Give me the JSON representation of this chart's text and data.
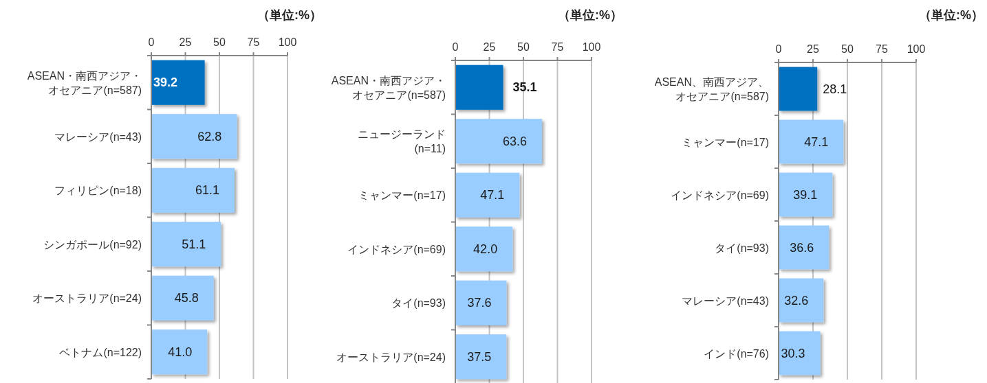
{
  "chart_data": [
    {
      "type": "bar",
      "orientation": "horizontal",
      "xlabel": "（単位:%）",
      "categories": [
        "ASEAN・南西アジア・オセアニア(n=587)",
        "マレーシア(n=43)",
        "フィリピン(n=18)",
        "シンガポール(n=92)",
        "オーストラリア(n=24)",
        "ベトナム(n=122)"
      ],
      "values": [
        39.2,
        62.8,
        61.1,
        51.1,
        45.8,
        41.0
      ],
      "value_labels": [
        "39.2",
        "62.8",
        "61.1",
        "51.1",
        "45.8",
        "41.0"
      ],
      "colors": [
        "#0070c0",
        "#99ccff",
        "#99ccff",
        "#99ccff",
        "#99ccff",
        "#99ccff"
      ],
      "xlim": [
        0,
        100
      ],
      "xticks": [
        0,
        25,
        50,
        75,
        100
      ],
      "grid": "x"
    },
    {
      "type": "bar",
      "orientation": "horizontal",
      "xlabel": "（単位:%）",
      "categories": [
        "ASEAN・南西アジア・オセアニア(n=587)",
        "ニュージーランド(n=11)",
        "ミャンマー(n=17)",
        "インドネシア(n=69)",
        "タイ(n=93)",
        "オーストラリア(n=24)"
      ],
      "values": [
        35.1,
        63.6,
        47.1,
        42.0,
        37.6,
        37.5
      ],
      "value_labels": [
        "35.1",
        "63.6",
        "47.1",
        "42.0",
        "37.6",
        "37.5"
      ],
      "colors": [
        "#0070c0",
        "#99ccff",
        "#99ccff",
        "#99ccff",
        "#99ccff",
        "#99ccff"
      ],
      "xlim": [
        0,
        100
      ],
      "xticks": [
        0,
        25,
        50,
        75,
        100
      ],
      "grid": "x"
    },
    {
      "type": "bar",
      "orientation": "horizontal",
      "xlabel": "（単位:%）",
      "categories": [
        "ASEAN、南西アジア、オセアニア(n=587)",
        "ミャンマー(n=17)",
        "インドネシア(n=69)",
        "タイ(n=93)",
        "マレーシア(n=43)",
        "インド(n=76)"
      ],
      "values": [
        28.1,
        47.1,
        39.1,
        36.6,
        32.6,
        30.3
      ],
      "value_labels": [
        "28.1",
        "47.1",
        "39.1",
        "36.6",
        "32.6",
        "30.3"
      ],
      "colors": [
        "#0070c0",
        "#99ccff",
        "#99ccff",
        "#99ccff",
        "#99ccff",
        "#99ccff"
      ],
      "xlim": [
        0,
        100
      ],
      "xticks": [
        0,
        25,
        50,
        75,
        100
      ],
      "grid": "x"
    }
  ]
}
